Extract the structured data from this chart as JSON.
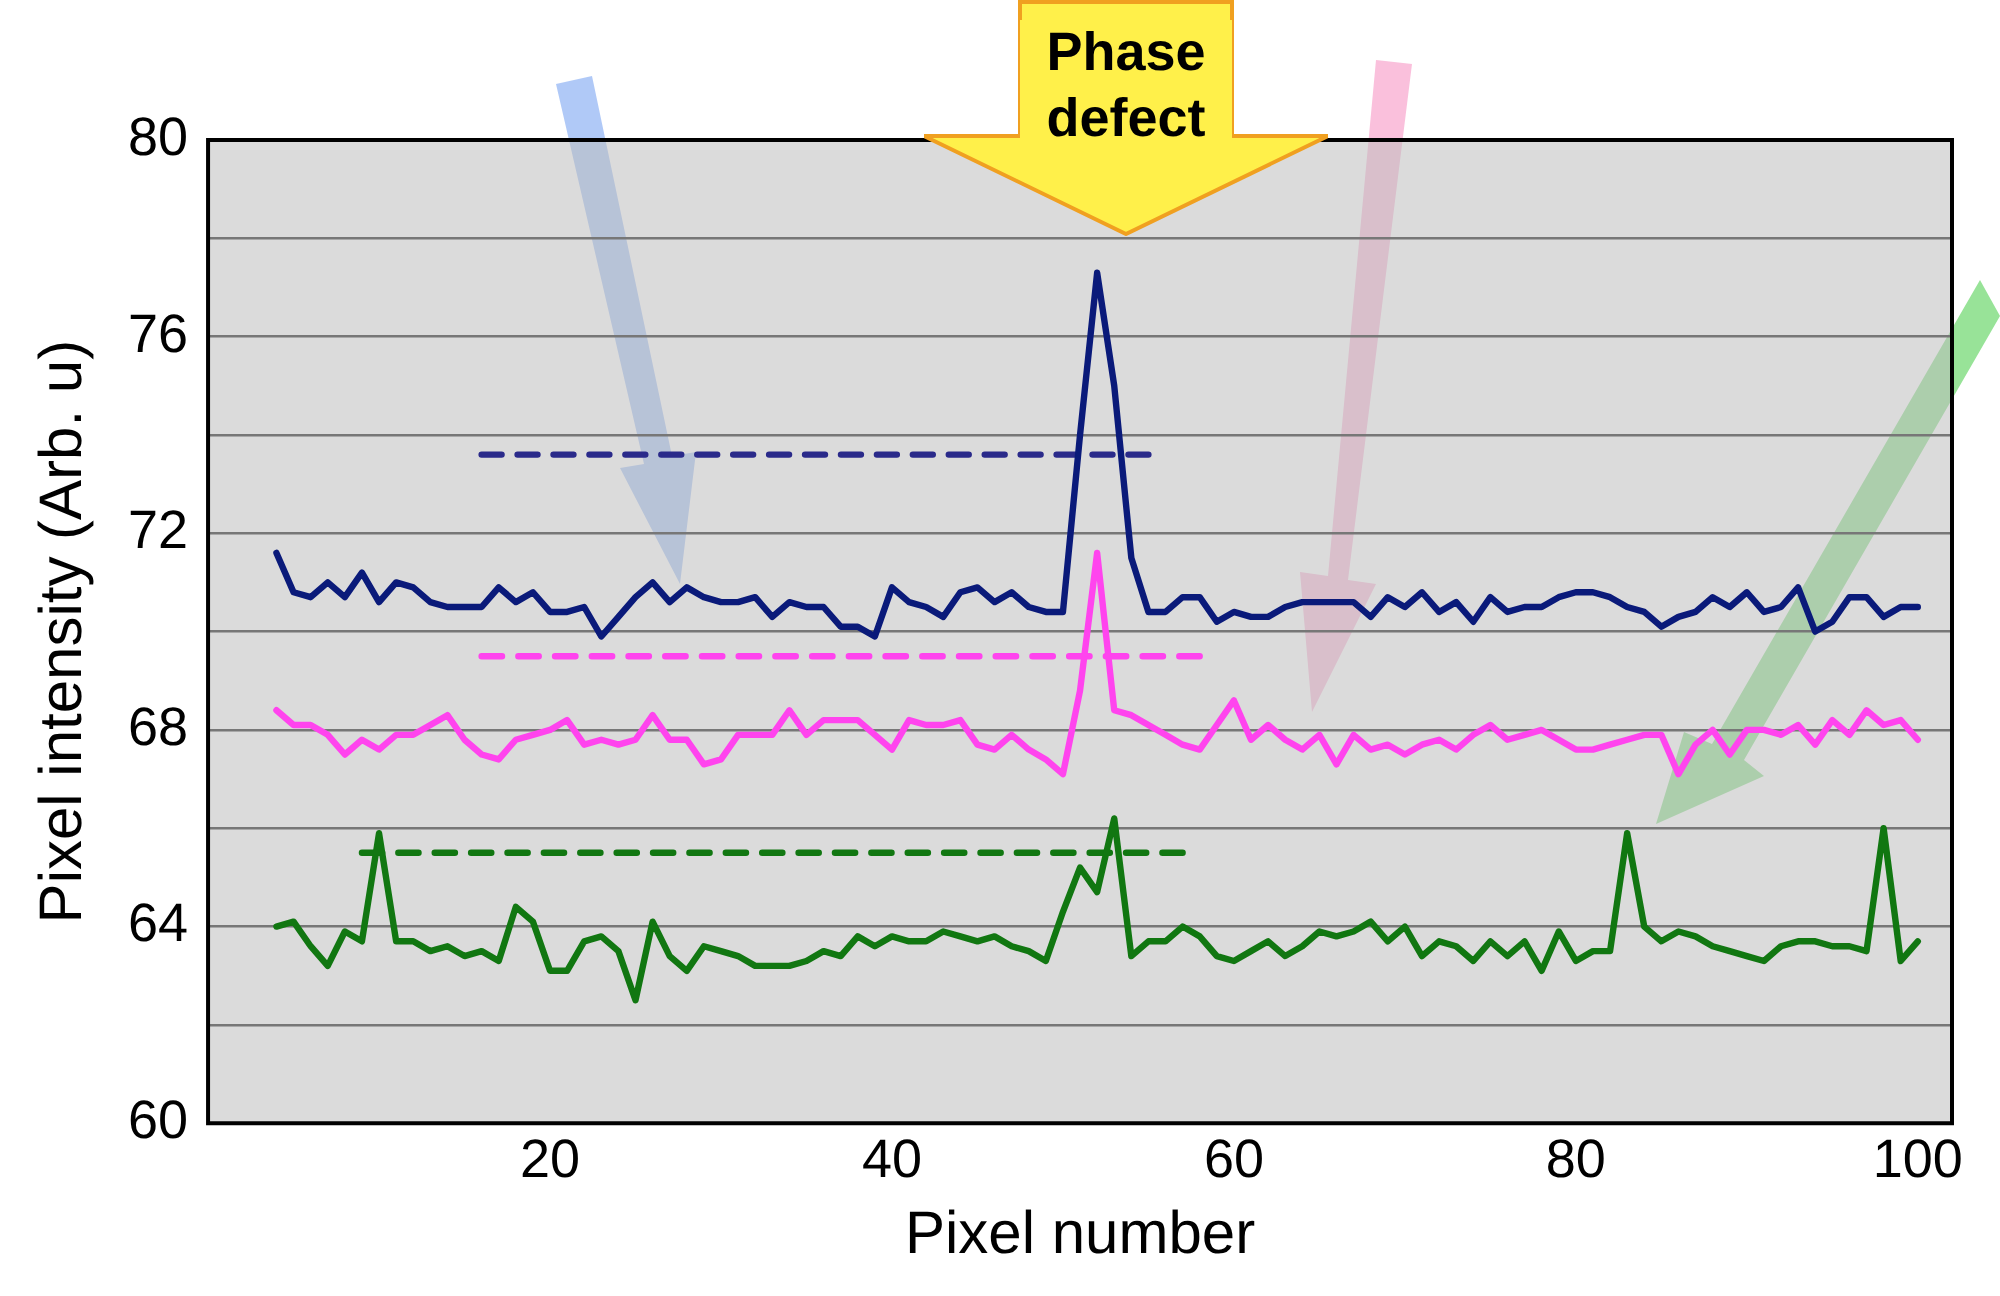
{
  "chart_data": {
    "type": "line",
    "xlabel": "Pixel number",
    "ylabel": "Pixel intensity (Arb. u)",
    "annotations": [
      "Phase defect"
    ],
    "x": [
      4,
      5,
      6,
      7,
      8,
      9,
      10,
      11,
      12,
      13,
      14,
      15,
      16,
      17,
      18,
      19,
      20,
      21,
      22,
      23,
      24,
      25,
      26,
      27,
      28,
      29,
      30,
      31,
      32,
      33,
      34,
      35,
      36,
      37,
      38,
      39,
      40,
      41,
      42,
      43,
      44,
      45,
      46,
      47,
      48,
      49,
      50,
      51,
      52,
      53,
      54,
      55,
      56,
      57,
      58,
      59,
      60,
      61,
      62,
      63,
      64,
      65,
      66,
      67,
      68,
      69,
      70,
      71,
      72,
      73,
      74,
      75,
      76,
      77,
      78,
      79,
      80,
      81,
      82,
      83,
      84,
      85,
      86,
      87,
      88,
      89,
      90,
      91,
      92,
      93,
      94,
      95,
      96,
      97,
      98,
      99,
      100
    ],
    "xlim": [
      0,
      102
    ],
    "xticks": [
      20,
      40,
      60,
      80,
      100
    ],
    "ylim": [
      60,
      80
    ],
    "yticks": [
      60,
      {
        "value": 62,
        "label": null
      },
      64,
      {
        "value": 66,
        "label": null
      },
      68,
      {
        "value": 70,
        "label": null
      },
      72,
      {
        "value": 74,
        "label": null
      },
      76,
      {
        "value": 78,
        "label": null
      },
      80
    ],
    "grid": "y",
    "legend": false,
    "marker": "none",
    "line_style": "solid",
    "series": [
      {
        "color": "#0a1a7a",
        "values": [
          71.6,
          70.8,
          70.7,
          71.0,
          70.7,
          71.2,
          70.6,
          71.0,
          70.9,
          70.6,
          70.5,
          70.5,
          70.5,
          70.9,
          70.6,
          70.8,
          70.4,
          70.4,
          70.5,
          69.9,
          70.3,
          70.7,
          71.0,
          70.6,
          70.9,
          70.7,
          70.6,
          70.6,
          70.7,
          70.3,
          70.6,
          70.5,
          70.5,
          70.1,
          70.1,
          69.9,
          70.9,
          70.6,
          70.5,
          70.3,
          70.8,
          70.9,
          70.6,
          70.8,
          70.5,
          70.4,
          70.4,
          74.0,
          77.3,
          75.0,
          71.5,
          70.4,
          70.4,
          70.7,
          70.7,
          70.2,
          70.4,
          70.3,
          70.3,
          70.5,
          70.6,
          70.6,
          70.6,
          70.6,
          70.3,
          70.7,
          70.5,
          70.8,
          70.4,
          70.6,
          70.2,
          70.7,
          70.4,
          70.5,
          70.5,
          70.7,
          70.8,
          70.8,
          70.7,
          70.5,
          70.4,
          70.1,
          70.3,
          70.4,
          70.7,
          70.5,
          70.8,
          70.4,
          70.5,
          70.9,
          70.0,
          70.2,
          70.7,
          70.7,
          70.3,
          70.5,
          70.5
        ]
      },
      {
        "color": "#ff44ee",
        "values": [
          68.4,
          68.1,
          68.1,
          67.9,
          67.5,
          67.8,
          67.6,
          67.9,
          67.9,
          68.1,
          68.3,
          67.8,
          67.5,
          67.4,
          67.8,
          67.9,
          68.0,
          68.2,
          67.7,
          67.8,
          67.7,
          67.8,
          68.3,
          67.8,
          67.8,
          67.3,
          67.4,
          67.9,
          67.9,
          67.9,
          68.4,
          67.9,
          68.2,
          68.2,
          68.2,
          67.9,
          67.6,
          68.2,
          68.1,
          68.1,
          68.2,
          67.7,
          67.6,
          67.9,
          67.6,
          67.4,
          67.1,
          68.8,
          71.6,
          68.4,
          68.3,
          68.1,
          67.9,
          67.7,
          67.6,
          68.1,
          68.6,
          67.8,
          68.1,
          67.8,
          67.6,
          67.9,
          67.3,
          67.9,
          67.6,
          67.7,
          67.5,
          67.7,
          67.8,
          67.6,
          67.9,
          68.1,
          67.8,
          67.9,
          68.0,
          67.8,
          67.6,
          67.6,
          67.7,
          67.8,
          67.9,
          67.9,
          67.1,
          67.7,
          68.0,
          67.5,
          68.0,
          68.0,
          67.9,
          68.1,
          67.7,
          68.2,
          67.9,
          68.4,
          68.1,
          68.2,
          67.8
        ]
      },
      {
        "color": "#117711",
        "values": [
          64.0,
          64.1,
          63.6,
          63.2,
          63.9,
          63.7,
          65.9,
          63.7,
          63.7,
          63.5,
          63.6,
          63.4,
          63.5,
          63.3,
          64.4,
          64.1,
          63.1,
          63.1,
          63.7,
          63.8,
          63.5,
          62.5,
          64.1,
          63.4,
          63.1,
          63.6,
          63.5,
          63.4,
          63.2,
          63.2,
          63.2,
          63.3,
          63.5,
          63.4,
          63.8,
          63.6,
          63.8,
          63.7,
          63.7,
          63.9,
          63.8,
          63.7,
          63.8,
          63.6,
          63.5,
          63.3,
          64.3,
          65.2,
          64.7,
          66.2,
          63.4,
          63.7,
          63.7,
          64.0,
          63.8,
          63.4,
          63.3,
          63.5,
          63.7,
          63.4,
          63.6,
          63.9,
          63.8,
          63.9,
          64.1,
          63.7,
          64.0,
          63.4,
          63.7,
          63.6,
          63.3,
          63.7,
          63.4,
          63.7,
          63.1,
          63.9,
          63.3,
          63.5,
          63.5,
          65.9,
          64.0,
          63.7,
          63.9,
          63.8,
          63.6,
          63.5,
          63.4,
          63.3,
          63.6,
          63.7,
          63.7,
          63.6,
          63.6,
          63.5,
          66.0,
          63.3,
          63.7
        ]
      },
      {
        "color": "#2a2a8a",
        "line_style": "dashed",
        "x": [
          16,
          55
        ],
        "values": [
          73.6,
          73.6
        ]
      },
      {
        "color": "#ff44ee",
        "line_style": "dashed",
        "x": [
          16,
          58
        ],
        "values": [
          69.5,
          69.5
        ]
      },
      {
        "color": "#117711",
        "line_style": "dashed",
        "x": [
          9,
          57
        ],
        "values": [
          65.5,
          65.5
        ]
      }
    ]
  }
}
